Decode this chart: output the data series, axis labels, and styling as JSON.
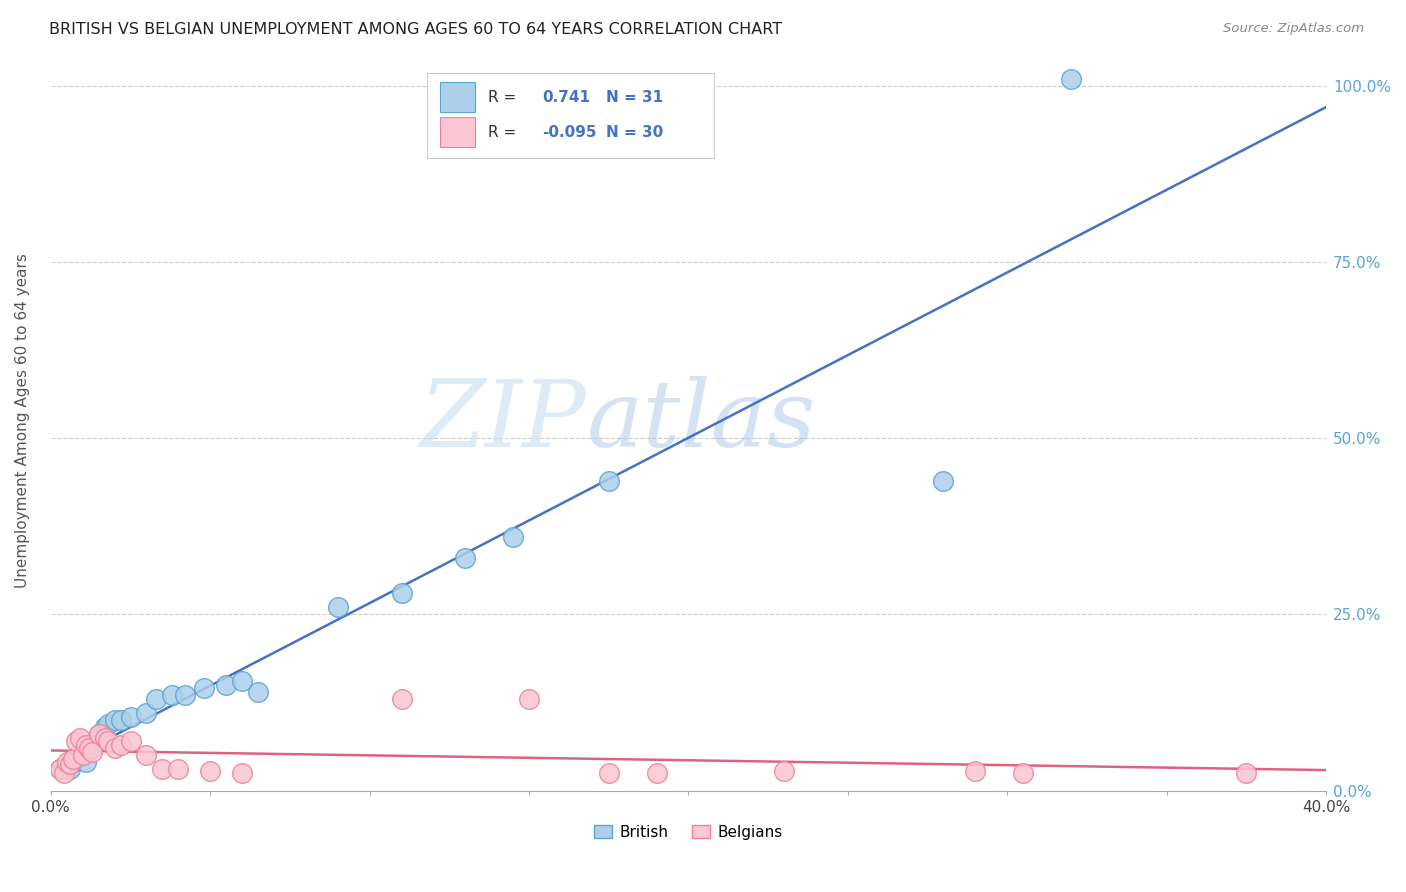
{
  "title": "BRITISH VS BELGIAN UNEMPLOYMENT AMONG AGES 60 TO 64 YEARS CORRELATION CHART",
  "source": "Source: ZipAtlas.com",
  "ylabel": "Unemployment Among Ages 60 to 64 years",
  "x_min": 0.0,
  "x_max": 0.4,
  "y_min": 0.0,
  "y_max": 1.05,
  "x_ticks": [
    0.0,
    0.05,
    0.1,
    0.15,
    0.2,
    0.25,
    0.3,
    0.35,
    0.4
  ],
  "x_tick_labels": [
    "0.0%",
    "",
    "",
    "",
    "",
    "",
    "",
    "",
    "40.0%"
  ],
  "y_ticks": [
    0.0,
    0.25,
    0.5,
    0.75,
    1.0
  ],
  "y_tick_labels_right": [
    "0.0%",
    "25.0%",
    "50.0%",
    "75.0%",
    "100.0%"
  ],
  "british_R": 0.741,
  "british_N": 31,
  "belgian_R": -0.095,
  "belgian_N": 30,
  "british_color": "#acd0eb",
  "belgian_color": "#f9c6d3",
  "british_edge_color": "#5ba3d0",
  "belgian_edge_color": "#f08098",
  "british_line_color": "#4472c4",
  "belgian_line_color": "#e06080",
  "watermark_zip": "ZIP",
  "watermark_atlas": "atlas",
  "british_scatter_x": [
    0.003,
    0.005,
    0.006,
    0.007,
    0.008,
    0.009,
    0.01,
    0.011,
    0.012,
    0.013,
    0.015,
    0.017,
    0.018,
    0.02,
    0.022,
    0.025,
    0.03,
    0.033,
    0.038,
    0.042,
    0.048,
    0.055,
    0.06,
    0.065,
    0.09,
    0.11,
    0.13,
    0.145,
    0.175,
    0.28,
    0.32
  ],
  "british_scatter_y": [
    0.03,
    0.035,
    0.03,
    0.04,
    0.045,
    0.055,
    0.06,
    0.04,
    0.065,
    0.06,
    0.08,
    0.09,
    0.095,
    0.1,
    0.1,
    0.105,
    0.11,
    0.13,
    0.135,
    0.135,
    0.145,
    0.15,
    0.155,
    0.14,
    0.26,
    0.28,
    0.33,
    0.36,
    0.44,
    0.44,
    1.01
  ],
  "belgian_scatter_x": [
    0.003,
    0.004,
    0.005,
    0.006,
    0.007,
    0.008,
    0.009,
    0.01,
    0.011,
    0.012,
    0.013,
    0.015,
    0.017,
    0.018,
    0.02,
    0.022,
    0.025,
    0.03,
    0.035,
    0.04,
    0.05,
    0.06,
    0.11,
    0.15,
    0.175,
    0.19,
    0.23,
    0.29,
    0.305,
    0.375
  ],
  "belgian_scatter_y": [
    0.03,
    0.025,
    0.04,
    0.038,
    0.045,
    0.07,
    0.075,
    0.05,
    0.065,
    0.06,
    0.055,
    0.08,
    0.075,
    0.07,
    0.06,
    0.065,
    0.07,
    0.05,
    0.03,
    0.03,
    0.028,
    0.025,
    0.13,
    0.13,
    0.025,
    0.025,
    0.028,
    0.028,
    0.025,
    0.025
  ]
}
